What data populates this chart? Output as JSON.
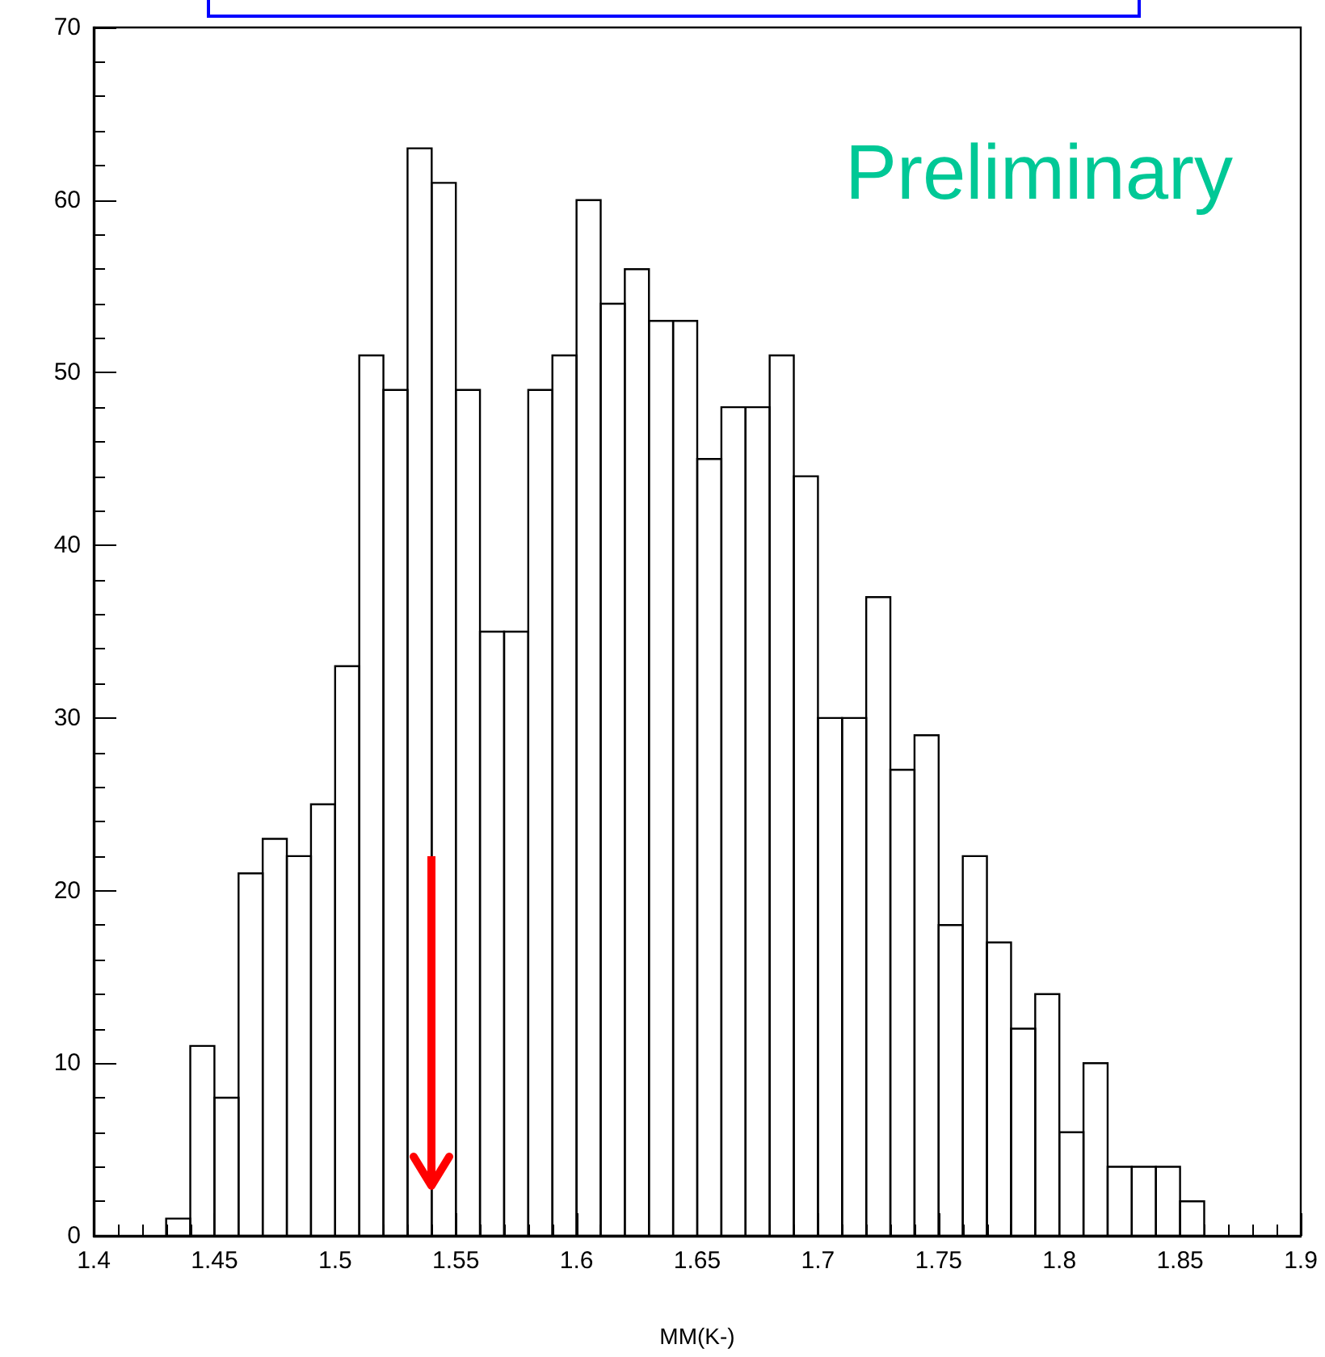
{
  "chart_data": {
    "type": "histogram",
    "xlabel": "MM(K-)",
    "annotations": [
      "Preliminary"
    ],
    "bins": [
      1.43,
      1.44,
      1.45,
      1.46,
      1.47,
      1.48,
      1.49,
      1.5,
      1.51,
      1.52,
      1.53,
      1.54,
      1.55,
      1.56,
      1.57,
      1.58,
      1.59,
      1.6,
      1.61,
      1.62,
      1.63,
      1.64,
      1.65,
      1.66,
      1.67,
      1.68,
      1.69,
      1.7,
      1.71,
      1.72,
      1.73,
      1.74,
      1.75,
      1.76,
      1.77,
      1.78,
      1.79,
      1.8,
      1.81,
      1.82,
      1.83,
      1.84,
      1.85,
      1.86
    ],
    "values": [
      1,
      11,
      8,
      21,
      23,
      22,
      25,
      33,
      51,
      49,
      63,
      61,
      49,
      35,
      35,
      49,
      51,
      60,
      54,
      56,
      53,
      53,
      45,
      48,
      48,
      51,
      44,
      30,
      30,
      37,
      27,
      29,
      18,
      22,
      17,
      12,
      14,
      6,
      10,
      4,
      4,
      4,
      2
    ],
    "color": "#000000",
    "xlim": [
      1.4,
      1.9
    ],
    "xticks": [
      1.4,
      1.45,
      1.5,
      1.55,
      1.6,
      1.65,
      1.7,
      1.75,
      1.8,
      1.85,
      1.9
    ],
    "ylim": [
      0,
      70
    ],
    "yticks": [
      0,
      10,
      20,
      30,
      40,
      50,
      60,
      70
    ],
    "grid": false
  }
}
